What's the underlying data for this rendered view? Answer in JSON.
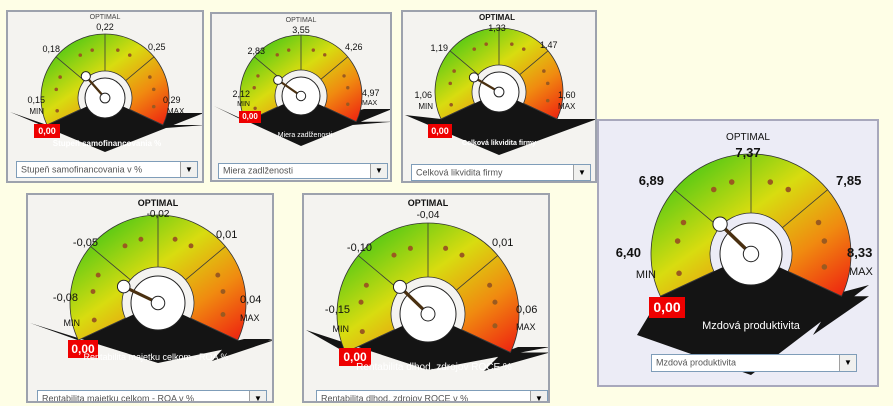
{
  "gauges": [
    {
      "optimal_label": "OPTIMAL",
      "optimal": "0,22",
      "left_upper": "0,18",
      "right_upper": "0,25",
      "min_value": "0,15",
      "min_label": "MIN",
      "max_value": "0,29",
      "max_label": "MAX",
      "current_value": "0,00",
      "title": "Stupeň samofinancovania %",
      "dropdown_value": "Stupeň samofinancovania v %",
      "needle_fraction": 0.32
    },
    {
      "optimal_label": "OPTIMAL",
      "optimal": "3,55",
      "left_upper": "2,83",
      "right_upper": "4,26",
      "min_value": "2,12",
      "min_label": "MIN",
      "max_value": "4,97",
      "max_label": "MAX",
      "current_value": "0,00",
      "title": "Miera zadlženosti",
      "dropdown_value": "Miera zadlženosti",
      "needle_fraction": 0.26
    },
    {
      "optimal_label": "OPTIMAL",
      "optimal": "1,33",
      "left_upper": "1,19",
      "right_upper": "1,47",
      "min_value": "1,06",
      "min_label": "MIN",
      "max_value": "1,60",
      "max_label": "MAX",
      "current_value": "0,00",
      "title": "Celková likvidita firmy",
      "dropdown_value": "Celková likvidita firmy",
      "needle_fraction": 0.24
    },
    {
      "optimal_label": "OPTIMAL",
      "optimal": "-0,02",
      "left_upper": "-0,05",
      "right_upper": "0,01",
      "min_value": "-0,08",
      "min_label": "MIN",
      "max_value": "0,04",
      "max_label": "MAX",
      "current_value": "0,00",
      "title": "Rentabilita majetku celkom - ROA %",
      "dropdown_value": "Rentabilita majetku celkom - ROA v %",
      "needle_fraction": 0.22
    },
    {
      "optimal_label": "OPTIMAL",
      "optimal": "-0,04",
      "left_upper": "-0,10",
      "right_upper": "0,01",
      "min_value": "-0,15",
      "min_label": "MIN",
      "max_value": "0,06",
      "max_label": "MAX",
      "current_value": "0,00",
      "title": "Rentabilita dlhod. zdrojov ROCE %",
      "dropdown_value": "Rentabilita dlhod. zdrojov ROCE v %",
      "needle_fraction": 0.3
    },
    {
      "optimal_label": "OPTIMAL",
      "optimal": "7,37",
      "left_upper": "6,89",
      "right_upper": "7,85",
      "min_value": "6,40",
      "min_label": "MIN",
      "max_value": "8,33",
      "max_label": "MAX",
      "current_value": "0,00",
      "title": "Mzdová produktivita",
      "dropdown_value": "Mzdová produktivita",
      "needle_fraction": 0.3
    }
  ],
  "colors": {
    "arc_green": "#18c018",
    "arc_yellow": "#d8dc10",
    "arc_orange": "#f08a10",
    "arc_red": "#ee1c10",
    "arc_dark": "#141414",
    "value_badge": "#e00000",
    "dots": "#9a5a20",
    "needle": "#4a3010"
  }
}
